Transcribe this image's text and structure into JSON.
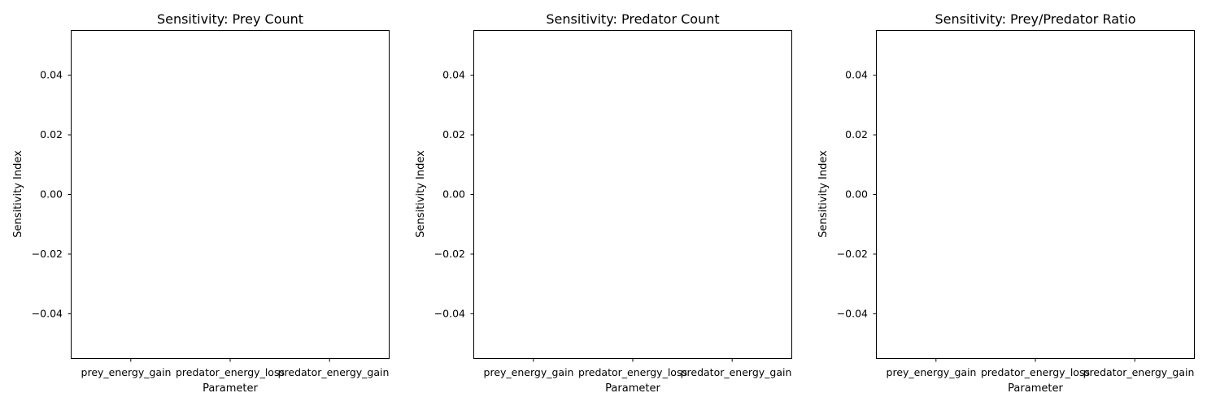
{
  "chart_data": [
    {
      "type": "bar",
      "title": "Sensitivity: Prey Count",
      "xlabel": "Parameter",
      "ylabel": "Sensitivity Index",
      "categories": [
        "prey_energy_gain",
        "predator_energy_loss",
        "predator_energy_gain"
      ],
      "values": [
        0,
        0,
        0
      ],
      "ylim": [
        -0.055,
        0.055
      ],
      "yticks": [
        -0.04,
        -0.02,
        0.0,
        0.02,
        0.04
      ],
      "ytick_labels": [
        "−0.04",
        "−0.02",
        "0.00",
        "0.02",
        "0.04"
      ],
      "grid": false
    },
    {
      "type": "bar",
      "title": "Sensitivity: Predator Count",
      "xlabel": "Parameter",
      "ylabel": "Sensitivity Index",
      "categories": [
        "prey_energy_gain",
        "predator_energy_loss",
        "predator_energy_gain"
      ],
      "values": [
        0,
        0,
        0
      ],
      "ylim": [
        -0.055,
        0.055
      ],
      "yticks": [
        -0.04,
        -0.02,
        0.0,
        0.02,
        0.04
      ],
      "ytick_labels": [
        "−0.04",
        "−0.02",
        "0.00",
        "0.02",
        "0.04"
      ],
      "grid": false
    },
    {
      "type": "bar",
      "title": "Sensitivity: Prey/Predator Ratio",
      "xlabel": "Parameter",
      "ylabel": "Sensitivity Index",
      "categories": [
        "prey_energy_gain",
        "predator_energy_loss",
        "predator_energy_gain"
      ],
      "values": [
        0,
        0,
        0
      ],
      "ylim": [
        -0.055,
        0.055
      ],
      "yticks": [
        -0.04,
        -0.02,
        0.0,
        0.02,
        0.04
      ],
      "ytick_labels": [
        "−0.04",
        "−0.02",
        "0.00",
        "0.02",
        "0.04"
      ],
      "grid": false
    }
  ],
  "colors": {
    "bar": "#1f77b4",
    "axis": "#000000",
    "background": "#ffffff"
  }
}
